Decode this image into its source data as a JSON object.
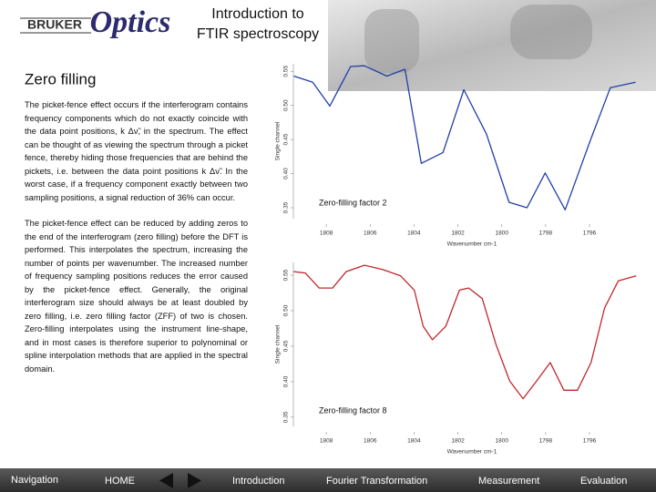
{
  "header": {
    "logo_brand": "BRUKER",
    "logo_script": "Optics",
    "title_lines": [
      "Introduction to",
      "FTIR spectroscopy"
    ]
  },
  "section_title": "Zero filling",
  "paragraphs": [
    "The picket-fence effect occurs if the interferogram contains frequency components which do not exactly coincide with the data point positions, k Δν̃, in the spectrum. The effect can be thought of as viewing the spectrum through a picket fence, thereby hiding those frequencies that are behind the pickets, i.e. between the data point positions k Δν̃. In the worst case, if a frequency component exactly between two sampling positions, a signal reduction of 36% can occur.",
    "The picket-fence effect can be reduced by adding zeros to the end of the interferogram (zero filling) before the DFT is performed. This interpolates the spectrum, increasing the number of points per wavenumber. The increased number of frequency sampling positions reduces the error caused by the picket-fence effect. Generally, the original interferogram size should always be at least doubled by zero filling, i.e. zero filling factor (ZFF) of two is chosen. Zero-filling interpolates using the instrument line-shape, and in most cases is therefore superior to polynominal or spline interpolation methods that are applied in the spectral domain."
  ],
  "chart_data": [
    {
      "type": "line",
      "annotation": "Zero-filling factor 2",
      "x_label": "Wavenumber cm-1",
      "y_label": "Single channel",
      "color": "#1f3fa8",
      "x": [
        1809.48,
        1808.62,
        1807.84,
        1806.89,
        1806.27,
        1805.24,
        1804.41,
        1803.67,
        1802.68,
        1801.73,
        1800.7,
        1799.67,
        1798.85,
        1798.02,
        1797.11,
        1795.96,
        1795.05,
        1793.9
      ],
      "values": [
        0.543,
        0.534,
        0.499,
        0.557,
        0.558,
        0.543,
        0.553,
        0.415,
        0.431,
        0.523,
        0.458,
        0.358,
        0.35,
        0.401,
        0.347,
        0.449,
        0.526,
        0.534
      ],
      "xlim": [
        1809.5,
        1793.8
      ],
      "xticks": [
        1808,
        1806,
        1804,
        1802,
        1800,
        1798,
        1796
      ],
      "ylim": [
        0.334,
        0.561
      ],
      "yticks": [
        0.35,
        {
          "value": 0.4,
          "label": "0.40"
        },
        0.45,
        {
          "value": 0.5,
          "label": "0.50"
        },
        0.55
      ]
    },
    {
      "type": "line",
      "annotation": "Zero-filling factor 8",
      "x_label": "Wavenumber cm-1",
      "y_label": "Single channel",
      "color": "#c0282d",
      "x": [
        1809.49,
        1808.95,
        1808.33,
        1807.71,
        1807.09,
        1806.26,
        1805.44,
        1804.61,
        1803.99,
        1803.58,
        1803.16,
        1802.55,
        1801.93,
        1801.51,
        1800.89,
        1800.27,
        1799.64,
        1799.03,
        1798.41,
        1797.79,
        1797.17,
        1796.55,
        1795.93,
        1795.31,
        1794.69,
        1793.87
      ],
      "values": [
        0.555,
        0.553,
        0.532,
        0.532,
        0.555,
        0.564,
        0.558,
        0.549,
        0.529,
        0.478,
        0.459,
        0.478,
        0.529,
        0.532,
        0.517,
        0.453,
        0.401,
        0.376,
        0.401,
        0.427,
        0.388,
        0.388,
        0.427,
        0.504,
        0.542,
        0.549
      ],
      "xlim": [
        1809.5,
        1793.8
      ],
      "xticks": [
        1808,
        1806,
        1804,
        1802,
        1800,
        1798,
        1796
      ],
      "ylim": [
        0.337,
        0.568
      ],
      "yticks": [
        0.35,
        {
          "value": 0.4,
          "label": "0.40"
        },
        0.45,
        {
          "value": 0.5,
          "label": "0.50"
        },
        0.55
      ]
    }
  ],
  "nav": {
    "label": "Navigation",
    "items": [
      "HOME",
      "Introduction",
      "Fourier Transformation",
      "Measurement",
      "Evaluation"
    ]
  }
}
